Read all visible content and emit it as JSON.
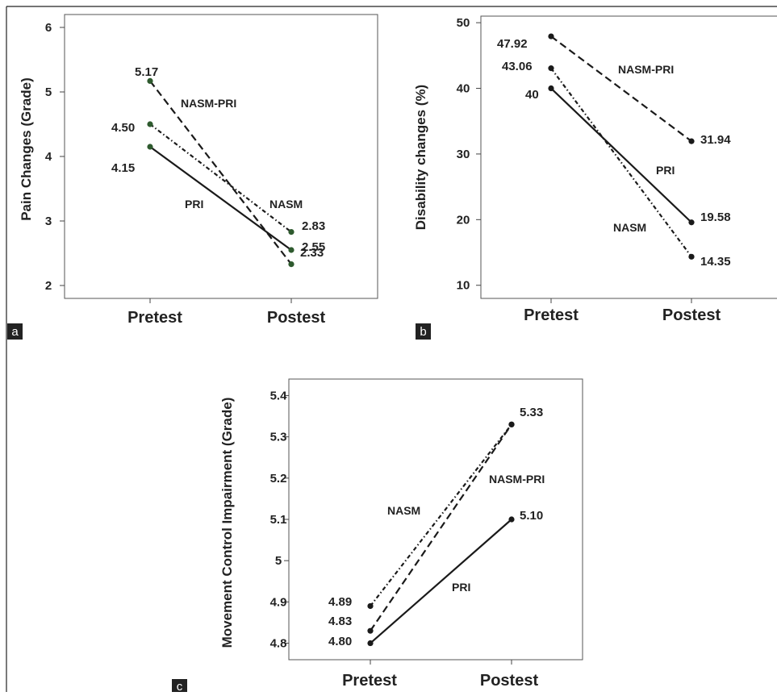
{
  "chart_data": [
    {
      "panel": "a",
      "type": "line",
      "categories": [
        "Pretest",
        "Postest"
      ],
      "ylabel": "Pain Changes (Grade)",
      "xlabel": "",
      "ylim": [
        1.8,
        6.2
      ],
      "yticks": [
        "2",
        "3",
        "4",
        "5",
        "6"
      ],
      "ytick_values": [
        2,
        3,
        4,
        5,
        6
      ],
      "series": [
        {
          "name": "NASM-PRI",
          "values": [
            5.17,
            2.33
          ],
          "value_labels": [
            "5.17",
            "2.33"
          ],
          "dash": "long-dash"
        },
        {
          "name": "NASM",
          "values": [
            4.5,
            2.83
          ],
          "value_labels": [
            "4.50",
            "2.83"
          ],
          "dash": "dash-dot"
        },
        {
          "name": "PRI",
          "values": [
            4.15,
            2.55
          ],
          "value_labels": [
            "4.15",
            "2.55"
          ],
          "dash": "solid"
        }
      ]
    },
    {
      "panel": "b",
      "type": "line",
      "categories": [
        "Pretest",
        "Postest"
      ],
      "ylabel": "Disability changes (%)",
      "xlabel": "",
      "ylim": [
        8,
        51
      ],
      "yticks": [
        "10",
        "20",
        "30",
        "40",
        "50"
      ],
      "ytick_values": [
        10,
        20,
        30,
        40,
        50
      ],
      "series": [
        {
          "name": "NASM-PRI",
          "values": [
            47.92,
            31.94
          ],
          "value_labels": [
            "47.92",
            "31.94"
          ],
          "dash": "long-dash"
        },
        {
          "name": "NASM",
          "values": [
            43.06,
            14.35
          ],
          "value_labels": [
            "43.06",
            "14.35"
          ],
          "dash": "dash-dot"
        },
        {
          "name": "PRI",
          "values": [
            40,
            19.58
          ],
          "value_labels": [
            "40",
            "19.58"
          ],
          "dash": "solid"
        }
      ]
    },
    {
      "panel": "c",
      "type": "line",
      "categories": [
        "Pretest",
        "Postest"
      ],
      "ylabel": "Movement Control  Impairment  (Grade)",
      "xlabel": "",
      "ylim": [
        4.76,
        5.44
      ],
      "yticks": [
        "4.8",
        "4.9",
        "5",
        "5.1",
        "5.2",
        "5.3",
        "5.4"
      ],
      "ytick_values": [
        4.8,
        4.9,
        5.0,
        5.1,
        5.2,
        5.3,
        5.4
      ],
      "series": [
        {
          "name": "NASM-PRI",
          "values": [
            4.83,
            5.33
          ],
          "value_labels": [
            "4.83",
            "5.33"
          ],
          "dash": "long-dash"
        },
        {
          "name": "NASM",
          "values": [
            4.89,
            5.33
          ],
          "value_labels": [
            "4.89",
            ""
          ],
          "dash": "dash-dot"
        },
        {
          "name": "PRI",
          "values": [
            4.8,
            5.1
          ],
          "value_labels": [
            "4.80",
            "5.10"
          ],
          "dash": "solid"
        }
      ]
    }
  ],
  "colors": {
    "line": "#1a1a1a",
    "marker_green": "#2e5a2e",
    "marker_dark": "#1a1a1a",
    "badge_bg": "#222222",
    "badge_text": "#ffffff"
  }
}
